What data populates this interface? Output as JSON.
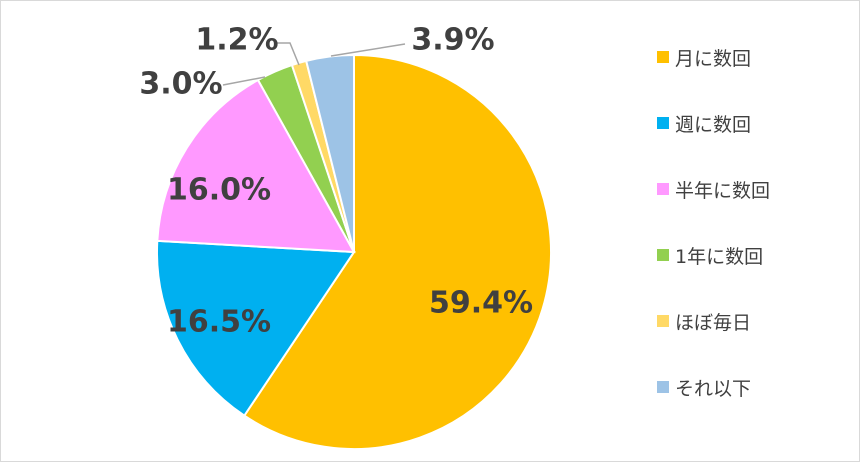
{
  "chart_data": {
    "type": "pie",
    "title": "",
    "categories": [
      "月に数回",
      "週に数回",
      "半年に数回",
      "1年に数回",
      "ほぼ毎日",
      "それ以下"
    ],
    "values": [
      59.4,
      16.5,
      16.0,
      3.0,
      1.2,
      3.9
    ],
    "value_labels": [
      "59.4%",
      "16.5%",
      "16.0%",
      "3.0%",
      "1.2%",
      "3.9%"
    ],
    "colors": [
      "#FFC000",
      "#00B0F0",
      "#FF99FF",
      "#92D050",
      "#FFD966",
      "#9DC3E6"
    ],
    "legend_position": "right"
  }
}
